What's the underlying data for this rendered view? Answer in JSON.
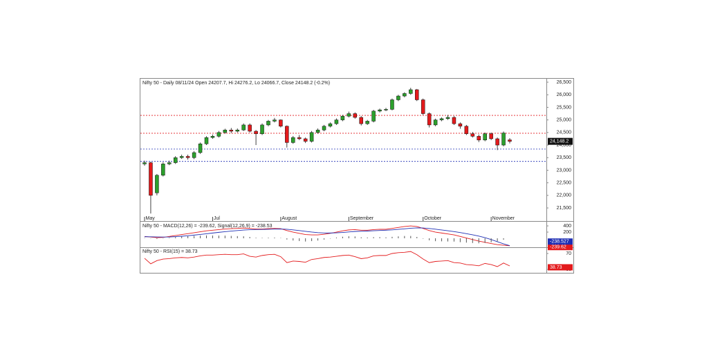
{
  "chart_data": [
    {
      "type": "candlestick",
      "title": "Nifty 50 - Daily 08/11/24 Open 24207.7, Hi 24276.2, Lo 24066.7, Close 24148.2 (-0.2%)",
      "categories": [
        "May",
        null,
        null,
        null,
        null,
        null,
        null,
        null,
        null,
        null,
        null,
        "Jul",
        null,
        null,
        null,
        null,
        null,
        null,
        null,
        null,
        null,
        null,
        "August",
        null,
        null,
        null,
        null,
        null,
        null,
        null,
        null,
        null,
        null,
        "September",
        null,
        null,
        null,
        null,
        null,
        null,
        null,
        null,
        null,
        null,
        null,
        "October",
        null,
        null,
        null,
        null,
        null,
        null,
        null,
        null,
        null,
        null,
        "November",
        null,
        null,
        null
      ],
      "up_color": "#2ca02c",
      "down_color": "#e31a1c",
      "series": [
        {
          "values": [
            [
              23250,
              23380,
              23180,
              23300
            ],
            [
              23300,
              23340,
              21280,
              22000
            ],
            [
              22100,
              22850,
              22000,
              22800
            ],
            [
              22800,
              23320,
              22750,
              23250
            ],
            [
              23250,
              23380,
              23200,
              23300
            ],
            [
              23300,
              23560,
              23250,
              23500
            ],
            [
              23500,
              23620,
              23450,
              23550
            ],
            [
              23550,
              23620,
              23420,
              23500
            ],
            [
              23500,
              23760,
              23440,
              23700
            ],
            [
              23700,
              24100,
              23650,
              24050
            ],
            [
              24050,
              24350,
              24000,
              24300
            ],
            [
              24300,
              24420,
              24250,
              24350
            ],
            [
              24350,
              24560,
              24300,
              24500
            ],
            [
              24500,
              24650,
              24450,
              24600
            ],
            [
              24600,
              24680,
              24480,
              24550
            ],
            [
              24550,
              24660,
              24500,
              24600
            ],
            [
              24600,
              24860,
              24560,
              24800
            ],
            [
              24800,
              24860,
              24500,
              24550
            ],
            [
              24550,
              24600,
              24000,
              24450
            ],
            [
              24450,
              24860,
              24400,
              24800
            ],
            [
              24800,
              25000,
              24750,
              24950
            ],
            [
              24950,
              25080,
              24900,
              25000
            ],
            [
              25000,
              25020,
              24700,
              24750
            ],
            [
              24750,
              24780,
              23900,
              24100
            ],
            [
              24100,
              24360,
              24050,
              24300
            ],
            [
              24300,
              24400,
              24200,
              24250
            ],
            [
              24250,
              24300,
              24080,
              24150
            ],
            [
              24150,
              24560,
              24100,
              24500
            ],
            [
              24500,
              24660,
              24450,
              24600
            ],
            [
              24600,
              24800,
              24550,
              24750
            ],
            [
              24750,
              24900,
              24700,
              24850
            ],
            [
              24850,
              25060,
              24800,
              25000
            ],
            [
              25000,
              25200,
              24950,
              25150
            ],
            [
              25150,
              25330,
              25100,
              25250
            ],
            [
              25250,
              25300,
              25050,
              25100
            ],
            [
              25100,
              25150,
              24780,
              24850
            ],
            [
              24850,
              25000,
              24800,
              24950
            ],
            [
              24950,
              25400,
              24900,
              25350
            ],
            [
              25350,
              25450,
              25300,
              25400
            ],
            [
              25400,
              25480,
              25350,
              25420
            ],
            [
              25420,
              25850,
              25380,
              25800
            ],
            [
              25800,
              26000,
              25750,
              25950
            ],
            [
              25950,
              26100,
              25900,
              26050
            ],
            [
              26050,
              26277,
              26000,
              26200
            ],
            [
              26200,
              26230,
              25750,
              25800
            ],
            [
              25800,
              25850,
              25200,
              25250
            ],
            [
              25250,
              25300,
              24700,
              24800
            ],
            [
              24800,
              25050,
              24750,
              25000
            ],
            [
              25000,
              25100,
              24950,
              25050
            ],
            [
              25050,
              25200,
              25000,
              25100
            ],
            [
              25100,
              25150,
              24800,
              24850
            ],
            [
              24850,
              24900,
              24650,
              24750
            ],
            [
              24750,
              24800,
              24400,
              24450
            ],
            [
              24450,
              24520,
              24300,
              24350
            ],
            [
              24350,
              24420,
              24120,
              24200
            ],
            [
              24200,
              24500,
              24150,
              24450
            ],
            [
              24450,
              24500,
              24200,
              24250
            ],
            [
              24250,
              24300,
              23800,
              24000
            ],
            [
              24000,
              24540,
              23950,
              24480
            ],
            [
              24207.7,
              24276.2,
              24066.7,
              24148.2
            ]
          ]
        }
      ],
      "last_label": "24,148.2",
      "levels": [
        {
          "value": 25180,
          "color": "#e31a1c"
        },
        {
          "value": 24470,
          "color": "#e31a1c"
        },
        {
          "value": 23840,
          "color": "#1f2fb4"
        },
        {
          "value": 23350,
          "color": "#1f2fb4"
        }
      ],
      "ylim": [
        20980,
        26665
      ],
      "yticks": [
        {
          "value": 21500,
          "label": "21,500"
        },
        {
          "value": 22000,
          "label": "22,000"
        },
        {
          "value": 22500,
          "label": "22,500"
        },
        {
          "value": 23000,
          "label": "23,000"
        },
        {
          "value": 23500,
          "label": "23,500"
        },
        {
          "value": 24000,
          "label": "24,000"
        },
        {
          "value": 24500,
          "label": "24,500"
        },
        {
          "value": 25000,
          "label": "25,000"
        },
        {
          "value": 25500,
          "label": "25,500"
        },
        {
          "value": 26000,
          "label": "26,000"
        },
        {
          "value": 26500,
          "label": "26,500"
        }
      ]
    },
    {
      "type": "line",
      "title": "Nifty 50 - MACD(12,26) = -239.62, Signal(12,26,9) = -238.53",
      "series": [
        {
          "color": "#e31a1c",
          "kind": "line",
          "last_label": "-239.62",
          "values": [
            60,
            40,
            20,
            30,
            60,
            90,
            120,
            150,
            180,
            210,
            240,
            260,
            280,
            300,
            310,
            320,
            330,
            320,
            300,
            300,
            310,
            320,
            310,
            250,
            200,
            160,
            120,
            110,
            110,
            130,
            160,
            200,
            240,
            270,
            280,
            260,
            260,
            280,
            290,
            290,
            320,
            350,
            380,
            400,
            380,
            320,
            250,
            200,
            170,
            140,
            110,
            60,
            10,
            -40,
            -90,
            -130,
            -170,
            -205,
            -225,
            -239.62
          ]
        },
        {
          "color": "#1f2fb4",
          "kind": "line",
          "last_label": "-238.527",
          "values": [
            50,
            48,
            43,
            40,
            44,
            53,
            67,
            83,
            103,
            124,
            147,
            170,
            192,
            214,
            233,
            250,
            266,
            277,
            282,
            286,
            291,
            297,
            300,
            290,
            272,
            250,
            224,
            201,
            183,
            172,
            170,
            176,
            189,
            205,
            220,
            228,
            234,
            243,
            252,
            260,
            272,
            288,
            306,
            325,
            336,
            333,
            316,
            293,
            268,
            243,
            216,
            185,
            150,
            112,
            72,
            20,
            -40,
            -110,
            -180,
            -238.53
          ]
        },
        {
          "color": "#555555",
          "kind": "bar",
          "values": [
            10,
            -8,
            -23,
            -10,
            16,
            37,
            53,
            67,
            77,
            86,
            93,
            90,
            88,
            86,
            77,
            70,
            64,
            43,
            18,
            14,
            19,
            23,
            10,
            -40,
            -72,
            -90,
            -104,
            -91,
            -73,
            -42,
            -10,
            24,
            51,
            65,
            60,
            32,
            26,
            37,
            38,
            30,
            48,
            62,
            74,
            75,
            44,
            -13,
            -66,
            -93,
            -98,
            -103,
            -106,
            -125,
            -140,
            -152,
            -162,
            -150,
            -130,
            -95,
            -45,
            -1.09
          ]
        }
      ],
      "ylim": [
        -290,
        535
      ],
      "yticks": [
        200,
        400
      ]
    },
    {
      "type": "line",
      "title": "Nifty 50 - RSI(15) = 38.73",
      "series": [
        {
          "color": "#e31a1c",
          "kind": "line",
          "last_label": "38.73",
          "values": [
            58,
            44,
            52,
            56,
            57,
            59,
            60,
            59,
            61,
            64,
            66,
            66,
            67,
            68,
            67,
            67,
            69,
            63,
            61,
            65,
            67,
            68,
            62,
            47,
            51,
            50,
            48,
            55,
            57,
            60,
            61,
            63,
            65,
            66,
            62,
            57,
            59,
            64,
            65,
            65,
            70,
            72,
            73,
            75,
            67,
            56,
            47,
            50,
            51,
            52,
            47,
            46,
            42,
            41,
            39,
            45,
            42,
            37,
            46,
            38.73
          ]
        }
      ],
      "ylim": [
        19.6,
        83.9
      ],
      "yticks": [
        30,
        70
      ]
    }
  ]
}
